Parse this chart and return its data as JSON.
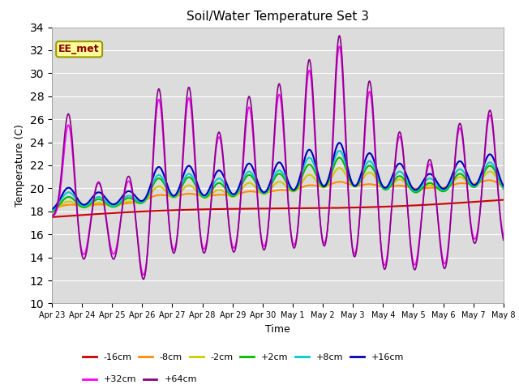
{
  "title": "Soil/Water Temperature Set 3",
  "xlabel": "Time",
  "ylabel": "Temperature (C)",
  "ylim": [
    10,
    34
  ],
  "yticks": [
    10,
    12,
    14,
    16,
    18,
    20,
    22,
    24,
    26,
    28,
    30,
    32,
    34
  ],
  "bg_color": "#dcdcdc",
  "annotation_text": "EE_met",
  "annotation_color": "#8b0000",
  "annotation_bg": "#ffff99",
  "annotation_border": "#999900",
  "series_names": [
    "-16cm",
    "-8cm",
    "-2cm",
    "+2cm",
    "+8cm",
    "+16cm",
    "+32cm",
    "+64cm"
  ],
  "series_colors": [
    "#cc0000",
    "#ff8c00",
    "#cccc00",
    "#00bb00",
    "#00cccc",
    "#0000bb",
    "#ff00ff",
    "#880088"
  ],
  "series_lw": [
    1.5,
    1.5,
    1.5,
    1.5,
    1.5,
    1.5,
    1.2,
    1.2
  ],
  "x_labels": [
    "Apr 23",
    "Apr 24",
    "Apr 25",
    "Apr 26",
    "Apr 27",
    "Apr 28",
    "Apr 29",
    "Apr 30",
    "May 1",
    "May 2",
    "May 3",
    "May 4",
    "May 5",
    "May 6",
    "May 7",
    "May 8"
  ],
  "n_days": 16
}
